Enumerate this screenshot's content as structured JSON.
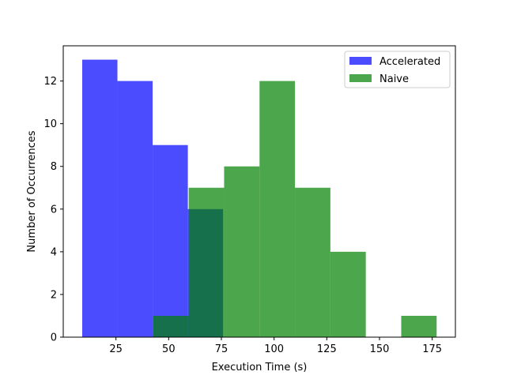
{
  "chart_data": {
    "type": "histogram",
    "title": "",
    "xlabel": "Execution Time (s)",
    "ylabel": "Number of Occurrences",
    "xlim": [
      0,
      186
    ],
    "ylim": [
      0,
      13.65
    ],
    "xticks": [
      25,
      50,
      75,
      100,
      125,
      150,
      175
    ],
    "yticks": [
      0,
      2,
      4,
      6,
      8,
      10,
      12
    ],
    "grid": false,
    "legend_position": "top-right",
    "alpha": 0.7,
    "series": [
      {
        "name": "Accelerated",
        "color": "#0000ff",
        "bins": [
          {
            "start": 9.0,
            "end": 25.7,
            "count": 13
          },
          {
            "start": 25.7,
            "end": 42.4,
            "count": 12
          },
          {
            "start": 42.4,
            "end": 59.1,
            "count": 9
          },
          {
            "start": 59.1,
            "end": 75.8,
            "count": 6
          }
        ]
      },
      {
        "name": "Naive",
        "color": "#008000",
        "bins": [
          {
            "start": 42.7,
            "end": 59.5,
            "count": 1
          },
          {
            "start": 59.5,
            "end": 76.3,
            "count": 7
          },
          {
            "start": 76.3,
            "end": 93.1,
            "count": 8
          },
          {
            "start": 93.1,
            "end": 109.9,
            "count": 12
          },
          {
            "start": 109.9,
            "end": 126.7,
            "count": 7
          },
          {
            "start": 126.7,
            "end": 143.5,
            "count": 4
          },
          {
            "start": 160.3,
            "end": 177.1,
            "count": 1
          }
        ]
      }
    ]
  }
}
